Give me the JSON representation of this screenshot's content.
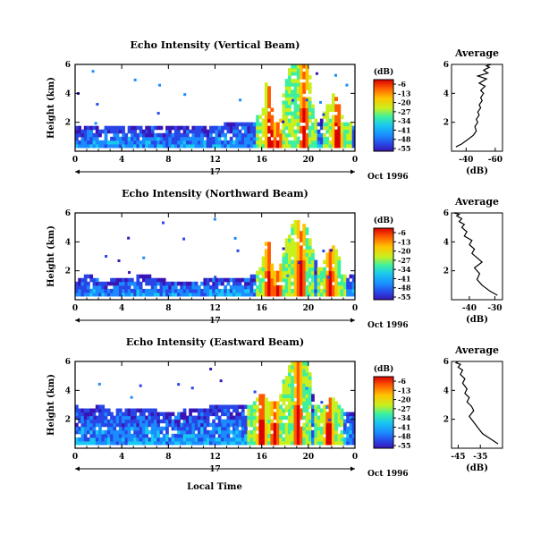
{
  "panels": [
    {
      "title": "Echo Intensity (Vertical Beam)",
      "ylabel": "Height (km)",
      "yticks": [
        "2",
        "4",
        "6"
      ],
      "xticks": [
        "0",
        "4",
        "8",
        "12",
        "16",
        "20",
        "0"
      ],
      "day_label": "17",
      "date_label": "Oct 1996",
      "colorbar": {
        "unit": "(dB)",
        "labels": [
          "-6",
          "-13",
          "-20",
          "-27",
          "-34",
          "-41",
          "-48",
          "-55"
        ]
      },
      "average": {
        "title": "Average",
        "xlabel": "(dB)",
        "xticks": [
          "-40",
          "-60"
        ],
        "yticks": [
          "2",
          "4",
          "6"
        ]
      }
    },
    {
      "title": "Echo Intensity (Northward Beam)",
      "ylabel": "Height (km)",
      "yticks": [
        "2",
        "4",
        "6"
      ],
      "xticks": [
        "0",
        "4",
        "8",
        "12",
        "16",
        "20",
        "0"
      ],
      "day_label": "17",
      "date_label": "Oct 1996",
      "colorbar": {
        "unit": "(dB)",
        "labels": [
          "-6",
          "-13",
          "-20",
          "-27",
          "-34",
          "-41",
          "-48",
          "-55"
        ]
      },
      "average": {
        "title": "Average",
        "xlabel": "(dB)",
        "xticks": [
          "-40",
          "-30"
        ],
        "yticks": [
          "2",
          "4",
          "6"
        ]
      }
    },
    {
      "title": "Echo Intensity (Eastward Beam)",
      "ylabel": "Height (km)",
      "yticks": [
        "2",
        "4",
        "6"
      ],
      "xticks": [
        "0",
        "4",
        "8",
        "12",
        "16",
        "20",
        "0"
      ],
      "day_label": "17",
      "date_label": "Oct 1996",
      "colorbar": {
        "unit": "(dB)",
        "labels": [
          "-6",
          "-13",
          "-20",
          "-27",
          "-34",
          "-41",
          "-48",
          "-55"
        ]
      },
      "average": {
        "title": "Average",
        "xlabel": "(dB)",
        "xticks": [
          "-45",
          "-35"
        ],
        "yticks": [
          "2",
          "4",
          "6"
        ]
      }
    }
  ],
  "bottom_xlabel": "Local Time",
  "chart_data": [
    {
      "type": "heatmap",
      "title": "Echo Intensity (Vertical Beam)",
      "ylabel": "Height (km)",
      "xlabel": "Local Time",
      "xlim": [
        0,
        24
      ],
      "ylim": [
        0,
        6
      ],
      "clim": [
        -55,
        -6
      ],
      "colorbar_unit": "dB",
      "echo_top_km": [
        [
          0,
          1.6
        ],
        [
          2,
          1.5
        ],
        [
          4,
          1.7
        ],
        [
          6,
          1.6
        ],
        [
          8,
          1.6
        ],
        [
          10,
          1.5
        ],
        [
          12,
          1.7
        ],
        [
          14,
          1.9
        ],
        [
          15,
          1.8
        ],
        [
          16,
          2.6
        ],
        [
          16.5,
          5.2
        ],
        [
          17,
          2.0
        ],
        [
          17.5,
          1.8
        ],
        [
          18,
          4.5
        ],
        [
          18.5,
          6
        ],
        [
          20,
          6
        ],
        [
          20.5,
          2.2
        ],
        [
          21,
          1.9
        ],
        [
          22,
          4.0
        ],
        [
          22.5,
          3.5
        ],
        [
          23,
          2.0
        ],
        [
          24,
          1.7
        ]
      ],
      "strong_echo_hours": [
        16.6,
        17.2,
        19.5,
        22.4
      ]
    },
    {
      "type": "line",
      "title": "Average",
      "xlabel": "(dB)",
      "ylabel": "Height (km)",
      "xlim": [
        -30,
        -65
      ],
      "ylim": [
        0,
        6
      ],
      "x": [
        -33,
        -37,
        -41,
        -45,
        -47,
        -46,
        -48,
        -47,
        -49,
        -48,
        -50,
        -49,
        -51,
        -50,
        -52,
        -50,
        -53,
        -49,
        -54,
        -48,
        -55,
        -52,
        -56,
        -54,
        -57,
        -55
      ],
      "y": [
        0.3,
        0.5,
        0.8,
        1.1,
        1.4,
        1.7,
        2.0,
        2.2,
        2.5,
        2.7,
        3.0,
        3.2,
        3.5,
        3.7,
        4.0,
        4.2,
        4.5,
        4.7,
        5.0,
        5.2,
        5.4,
        5.6,
        5.8,
        5.9,
        6.0,
        6.0
      ]
    },
    {
      "type": "heatmap",
      "title": "Echo Intensity (Northward Beam)",
      "ylabel": "Height (km)",
      "xlabel": "Local Time",
      "xlim": [
        0,
        24
      ],
      "ylim": [
        0,
        6
      ],
      "clim": [
        -55,
        -6
      ],
      "colorbar_unit": "dB",
      "echo_top_km": [
        [
          0,
          1.0
        ],
        [
          1,
          1.8
        ],
        [
          2,
          1.2
        ],
        [
          4,
          1.3
        ],
        [
          6,
          1.6
        ],
        [
          8,
          1.2
        ],
        [
          10,
          1.1
        ],
        [
          12,
          1.4
        ],
        [
          14,
          1.5
        ],
        [
          15,
          1.4
        ],
        [
          16,
          2.3
        ],
        [
          16.5,
          4.5
        ],
        [
          17,
          2.0
        ],
        [
          17.5,
          1.7
        ],
        [
          18,
          4.0
        ],
        [
          18.5,
          5.0
        ],
        [
          19,
          5.5
        ],
        [
          20,
          4.8
        ],
        [
          20.5,
          3.0
        ],
        [
          21,
          1.8
        ],
        [
          22,
          3.8
        ],
        [
          22.5,
          3.2
        ],
        [
          23,
          1.7
        ],
        [
          24,
          1.5
        ]
      ],
      "strong_echo_hours": [
        16.5,
        17.2,
        19.2,
        21.8
      ]
    },
    {
      "type": "line",
      "title": "Average",
      "xlabel": "(dB)",
      "ylabel": "Height (km)",
      "xlim": [
        -47,
        -27
      ],
      "ylim": [
        0,
        6
      ],
      "x": [
        -29,
        -32,
        -35,
        -37,
        -36,
        -38,
        -35,
        -37,
        -39,
        -38,
        -40,
        -39,
        -42,
        -41,
        -43,
        -42,
        -44,
        -43,
        -45,
        -44,
        -46,
        -45
      ],
      "y": [
        0.3,
        0.6,
        1.0,
        1.4,
        1.8,
        2.2,
        2.6,
        2.9,
        3.2,
        3.5,
        3.8,
        4.1,
        4.4,
        4.7,
        5.0,
        5.2,
        5.4,
        5.6,
        5.8,
        5.9,
        6.0,
        6.0
      ]
    },
    {
      "type": "heatmap",
      "title": "Echo Intensity (Eastward Beam)",
      "ylabel": "Height (km)",
      "xlabel": "Local Time",
      "xlim": [
        0,
        24
      ],
      "ylim": [
        0,
        6
      ],
      "clim": [
        -55,
        -6
      ],
      "colorbar_unit": "dB",
      "echo_top_km": [
        [
          0,
          2.9
        ],
        [
          1,
          2.5
        ],
        [
          2,
          2.8
        ],
        [
          4,
          2.6
        ],
        [
          6,
          2.7
        ],
        [
          8,
          2.3
        ],
        [
          10,
          2.6
        ],
        [
          12,
          2.8
        ],
        [
          14,
          3.0
        ],
        [
          15,
          2.9
        ],
        [
          16,
          3.6
        ],
        [
          17,
          3.0
        ],
        [
          17.5,
          3.2
        ],
        [
          18,
          5.0
        ],
        [
          18.5,
          6
        ],
        [
          20,
          6
        ],
        [
          20.5,
          3.0
        ],
        [
          21,
          2.7
        ],
        [
          22,
          3.5
        ],
        [
          22.5,
          3.0
        ],
        [
          23,
          2.5
        ],
        [
          24,
          2.4
        ]
      ],
      "strong_echo_hours": [
        15.9,
        17.0,
        19.0,
        21.6
      ]
    },
    {
      "type": "line",
      "title": "Average",
      "xlabel": "(dB)",
      "ylabel": "Height (km)",
      "xlim": [
        -48,
        -25
      ],
      "ylim": [
        0,
        6
      ],
      "x": [
        -27,
        -30,
        -34,
        -36,
        -38,
        -40,
        -38,
        -39,
        -41,
        -40,
        -42,
        -41,
        -43,
        -42,
        -44,
        -43,
        -45,
        -44,
        -46,
        -45
      ],
      "y": [
        0.3,
        0.6,
        1.0,
        1.4,
        1.8,
        2.2,
        2.6,
        2.9,
        3.2,
        3.5,
        3.8,
        4.1,
        4.5,
        4.8,
        5.1,
        5.4,
        5.6,
        5.8,
        5.9,
        6.0
      ]
    }
  ]
}
